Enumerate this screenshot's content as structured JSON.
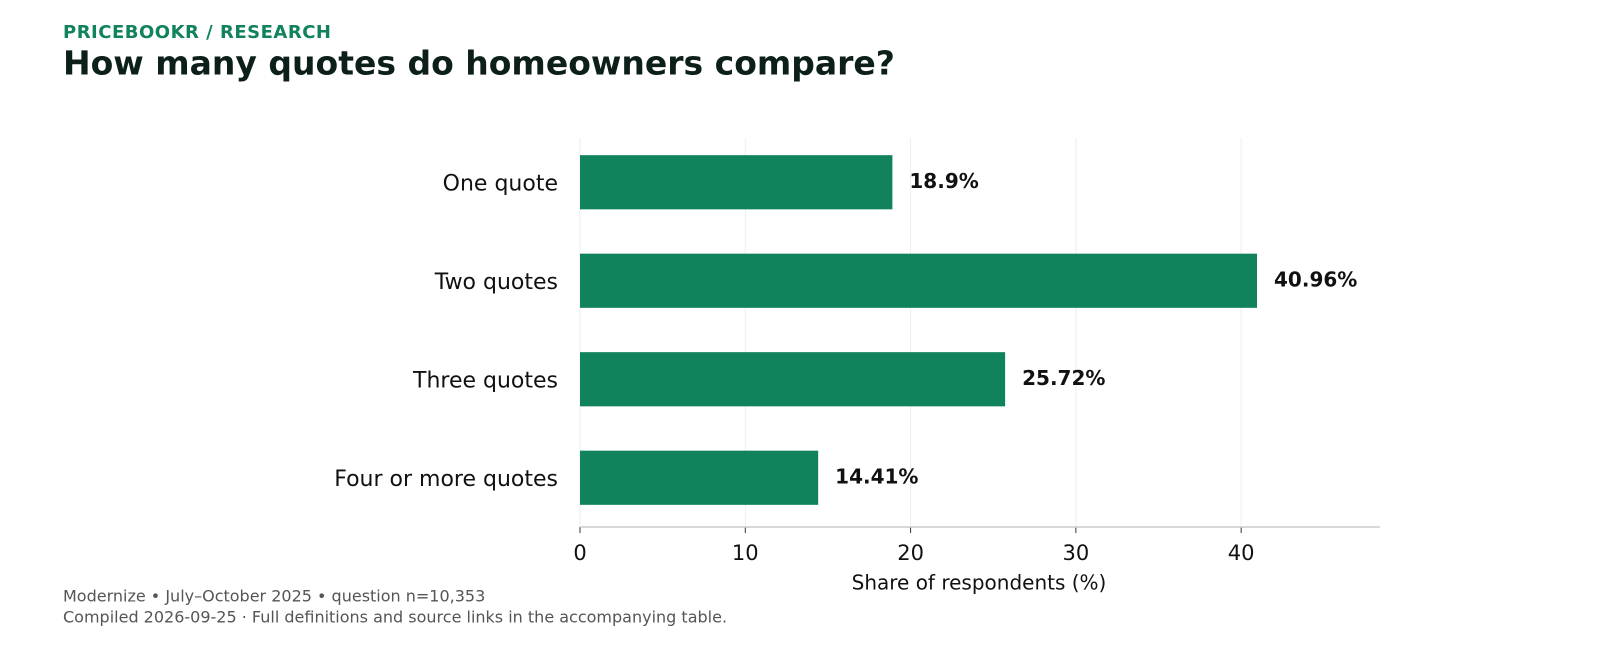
{
  "chart_data": {
    "type": "bar",
    "orientation": "horizontal",
    "kicker": "PRICEBOOKR / RESEARCH",
    "title": "How many quotes do homeowners compare?",
    "x_label": "Share of respondents (%)",
    "categories": [
      "One quote",
      "Two quotes",
      "Three quotes",
      "Four or more quotes"
    ],
    "values": [
      18.9,
      40.96,
      25.72,
      14.41
    ],
    "value_labels": [
      "18.9%",
      "40.96%",
      "25.72%",
      "14.41%"
    ],
    "color": "#10825c",
    "xlim": [
      0,
      48.4
    ],
    "xticks": [
      0,
      10,
      20,
      30,
      40
    ],
    "grid": true,
    "source": "Modernize • July–October 2025 • question n=10,353",
    "note": "Compiled 2026-09-25 · Full definitions and source links in the accompanying table."
  }
}
